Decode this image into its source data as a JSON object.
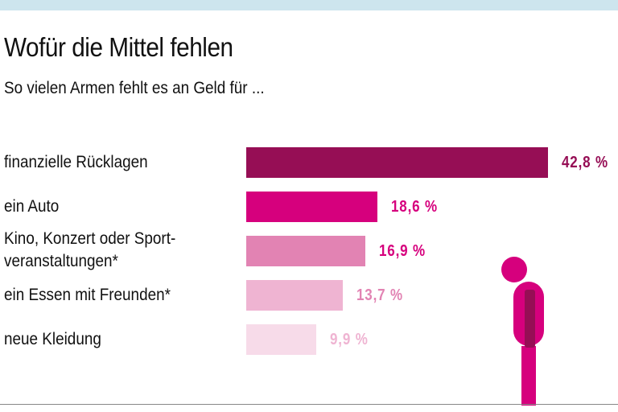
{
  "title": "Wofür die Mittel fehlen",
  "subtitle": "So vielen Armen fehlt es an Geld für  ...",
  "chart_data": {
    "type": "bar",
    "orientation": "horizontal",
    "title": "Wofür die Mittel fehlen",
    "subtitle": "So vielen Armen fehlt es an Geld für  ...",
    "categories": [
      "finanzielle Rücklagen",
      "ein Auto",
      "Kino, Konzert oder Sport-\nveranstaltungen*",
      "ein Essen mit Freunden*",
      "neue Kleidung"
    ],
    "values": [
      42.8,
      18.6,
      16.9,
      13.7,
      9.9
    ],
    "labels": [
      "42,8 %",
      "18,6 %",
      "16,9 %",
      "13,7 %",
      "9,9 %"
    ],
    "unit": "%",
    "colors": [
      "#960e55",
      "#d6007d",
      "#e283b3",
      "#efb4d2",
      "#f7dbe9"
    ],
    "label_colors": [
      "#960e55",
      "#d6007d",
      "#d6007d",
      "#e283b3",
      "#efb4d2"
    ],
    "grid": false
  },
  "illustration": {
    "icon": "stooped-person-icon",
    "colors": [
      "#d6007d",
      "#960e55"
    ]
  }
}
